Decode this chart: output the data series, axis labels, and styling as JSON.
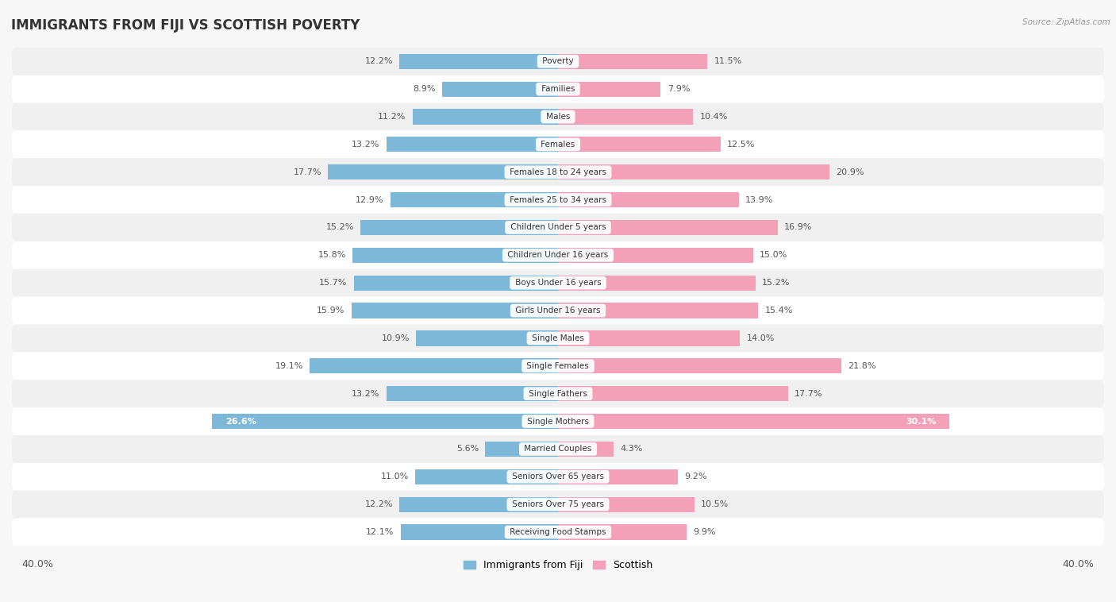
{
  "title": "IMMIGRANTS FROM FIJI VS SCOTTISH POVERTY",
  "source_text": "Source: ZipAtlas.com",
  "categories": [
    "Poverty",
    "Families",
    "Males",
    "Females",
    "Females 18 to 24 years",
    "Females 25 to 34 years",
    "Children Under 5 years",
    "Children Under 16 years",
    "Boys Under 16 years",
    "Girls Under 16 years",
    "Single Males",
    "Single Females",
    "Single Fathers",
    "Single Mothers",
    "Married Couples",
    "Seniors Over 65 years",
    "Seniors Over 75 years",
    "Receiving Food Stamps"
  ],
  "fiji_values": [
    12.2,
    8.9,
    11.2,
    13.2,
    17.7,
    12.9,
    15.2,
    15.8,
    15.7,
    15.9,
    10.9,
    19.1,
    13.2,
    26.6,
    5.6,
    11.0,
    12.2,
    12.1
  ],
  "scottish_values": [
    11.5,
    7.9,
    10.4,
    12.5,
    20.9,
    13.9,
    16.9,
    15.0,
    15.2,
    15.4,
    14.0,
    21.8,
    17.7,
    30.1,
    4.3,
    9.2,
    10.5,
    9.9
  ],
  "fiji_color": "#7db8d8",
  "scottish_color": "#f4a0b8",
  "fiji_label": "Immigrants from Fiji",
  "scottish_label": "Scottish",
  "xlim": 40.0,
  "row_colors": [
    "#f0f0f0",
    "#ffffff"
  ],
  "title_fontsize": 12,
  "label_fontsize": 8.0,
  "bar_height": 0.55,
  "highlight_row": 13,
  "highlight_fiji_color": "#5a9fc0",
  "highlight_scot_color": "#e87a9a"
}
